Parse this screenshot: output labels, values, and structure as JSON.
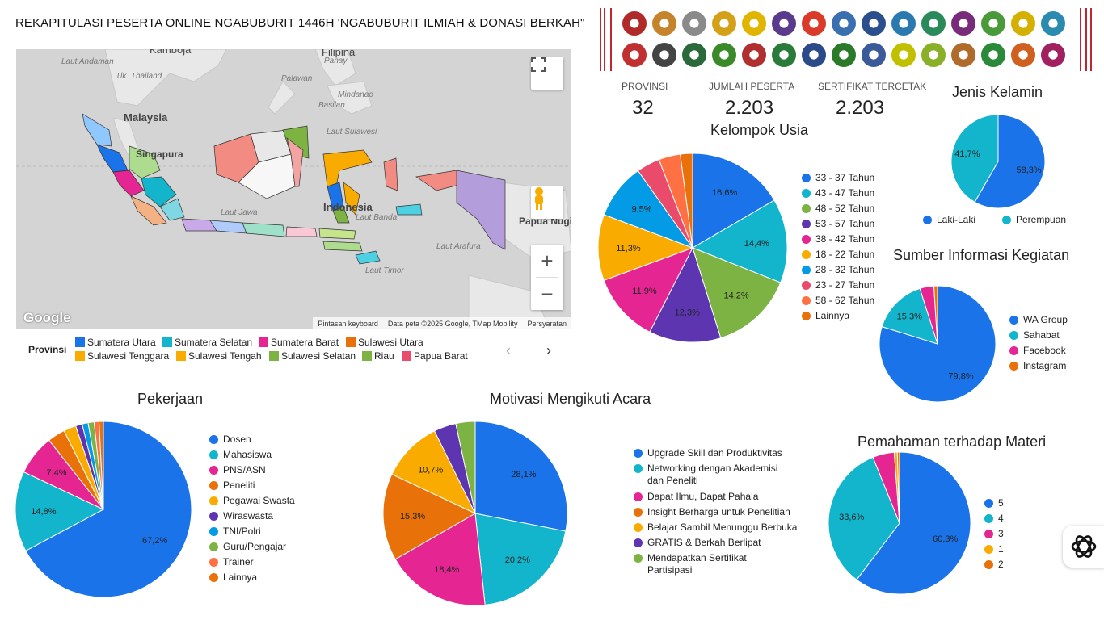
{
  "title": "REKAPITULASI PESERTA ONLINE NGABUBURIT 1446H 'NGABUBURIT ILMIAH & DONASI BERKAH\"",
  "map": {
    "labels": {
      "laut_andaman": "Laut Andaman",
      "kamboja": "Kamboja",
      "filipina": "Filipina",
      "panay": "Panay",
      "tlk_thailand": "Tlk. Thailand",
      "palawan": "Palawan",
      "mindanao": "Mindanao",
      "basilan": "Basilan",
      "malaysia": "Malaysia",
      "laut_sulawesi": "Laut Sulawesi",
      "singapura": "Singapura",
      "laut_jawa": "Laut Jawa",
      "indonesia": "Indonesia",
      "laut_banda": "Laut Banda",
      "papua_nugini": "Papua Nugini",
      "laut_arafura": "Laut Arafura",
      "laut_timor": "Laut Timor"
    },
    "footer": {
      "shortcuts": "Pintasan keyboard",
      "data": "Data peta ©2025 Google, TMap Mobility",
      "terms": "Persyaratan"
    },
    "logo": "Google",
    "zoom_in": "+",
    "zoom_out": "−",
    "fullscreen_icon": "fullscreen-icon",
    "pegman_icon": "pegman-icon"
  },
  "province_legend": {
    "label": "Provinsi",
    "items": [
      {
        "name": "Sumatera Utara",
        "color": "#1a73e8"
      },
      {
        "name": "Sumatera Selatan",
        "color": "#12b5cb"
      },
      {
        "name": "Sumatera Barat",
        "color": "#e52592"
      },
      {
        "name": "Sulawesi Utara",
        "color": "#e8710a"
      },
      {
        "name": "Sulawesi Tenggara",
        "color": "#f9ab00"
      },
      {
        "name": "Sulawesi Tengah",
        "color": "#f9ab00"
      },
      {
        "name": "Sulawesi Selatan",
        "color": "#7cb342"
      },
      {
        "name": "Riau",
        "color": "#7cb342"
      },
      {
        "name": "Papua Barat",
        "color": "#ea4b6b"
      }
    ],
    "prev": "‹",
    "next": "›"
  },
  "stats": {
    "provinsi_label": "PROVINSI",
    "provinsi_value": "32",
    "peserta_label": "JUMLAH PESERTA",
    "peserta_value": "2.203",
    "sertifikat_label": "SERTIFIKAT TERCETAK",
    "sertifikat_value": "2.203"
  },
  "chart_data": [
    {
      "id": "usia",
      "type": "pie",
      "title": "Kelompok Usia",
      "categories": [
        "33 - 37 Tahun",
        "43 - 47 Tahun",
        "48 - 52 Tahun",
        "53 - 57 Tahun",
        "38 - 42 Tahun",
        "18 - 22 Tahun",
        "28 - 32 Tahun",
        "23 - 27 Tahun",
        "58 - 62 Tahun",
        "Lainnya"
      ],
      "values": [
        16.6,
        14.4,
        14.2,
        12.3,
        11.9,
        11.3,
        9.5,
        4.0,
        3.7,
        2.1
      ],
      "labels": [
        "16,6%",
        "14,4%",
        "14,2%",
        "12,3%",
        "11,9%",
        "11,3%",
        "9,5%",
        "",
        "",
        ""
      ],
      "colors": [
        "#1a73e8",
        "#12b5cb",
        "#7cb342",
        "#5e35b1",
        "#e52592",
        "#f9ab00",
        "#039be5",
        "#ea4b6b",
        "#ff7043",
        "#e8710a"
      ]
    },
    {
      "id": "gender",
      "type": "pie",
      "title": "Jenis Kelamin",
      "categories": [
        "Laki-Laki",
        "Perempuan"
      ],
      "values": [
        58.3,
        41.7
      ],
      "labels": [
        "58,3%",
        "41,7%"
      ],
      "colors": [
        "#1a73e8",
        "#12b5cb"
      ]
    },
    {
      "id": "sumber",
      "type": "pie",
      "title": "Sumber Informasi Kegiatan",
      "categories": [
        "WA Group",
        "Sahabat",
        "Facebook",
        "Instagram"
      ],
      "values": [
        79.8,
        15.3,
        3.9,
        1.0
      ],
      "labels": [
        "79,8%",
        "15,3%",
        "",
        ""
      ],
      "colors": [
        "#1a73e8",
        "#12b5cb",
        "#e52592",
        "#e8710a"
      ]
    },
    {
      "id": "pekerjaan",
      "type": "pie",
      "title": "Pekerjaan",
      "categories": [
        "Dosen",
        "Mahasiswa",
        "PNS/ASN",
        "Peneliti",
        "Pegawai Swasta",
        "Wiraswasta",
        "TNI/Polri",
        "Guru/Pengajar",
        "Trainer",
        "Lainnya"
      ],
      "values": [
        67.2,
        14.8,
        7.4,
        3.2,
        2.3,
        1.2,
        1.1,
        1.1,
        0.9,
        0.8
      ],
      "labels": [
        "67,2%",
        "14,8%",
        "7,4%",
        "",
        "",
        "",
        "",
        "",
        "",
        ""
      ],
      "colors": [
        "#1a73e8",
        "#12b5cb",
        "#e52592",
        "#e8710a",
        "#f9ab00",
        "#5e35b1",
        "#039be5",
        "#7cb342",
        "#ff7043",
        "#e8710a"
      ]
    },
    {
      "id": "motivasi",
      "type": "pie",
      "title": "Motivasi Mengikuti Acara",
      "categories": [
        "Upgrade Skill dan Produktivitas",
        "Networking dengan Akademisi dan Peneliti",
        "Dapat Ilmu, Dapat Pahala",
        "Insight Berharga untuk Penelitian",
        "Belajar Sambil Menunggu Berbuka",
        "GRATIS & Berkah Berlipat",
        "Mendapatkan Sertifikat Partisipasi"
      ],
      "legend_lines": [
        [
          "Upgrade Skill dan Produktivitas"
        ],
        [
          "Networking dengan Akademisi",
          "dan Peneliti"
        ],
        [
          "Dapat Ilmu, Dapat Pahala"
        ],
        [
          "Insight Berharga untuk Penelitian"
        ],
        [
          "Belajar Sambil Menunggu Berbuka"
        ],
        [
          "GRATIS & Berkah Berlipat"
        ],
        [
          "Mendapatkan Sertifikat",
          "Partisipasi"
        ]
      ],
      "values": [
        28.1,
        20.2,
        18.4,
        15.3,
        10.7,
        3.9,
        3.4
      ],
      "labels": [
        "28,1%",
        "20,2%",
        "18,4%",
        "15,3%",
        "10,7%",
        "",
        ""
      ],
      "colors": [
        "#1a73e8",
        "#12b5cb",
        "#e52592",
        "#e8710a",
        "#f9ab00",
        "#5e35b1",
        "#7cb342"
      ]
    },
    {
      "id": "pemahaman",
      "type": "pie",
      "title": "Pemahaman terhadap Materi",
      "categories": [
        "5",
        "4",
        "3",
        "1",
        "2"
      ],
      "values": [
        60.3,
        33.6,
        4.9,
        0.7,
        0.5
      ],
      "labels": [
        "60,3%",
        "33,6%",
        "",
        "",
        ""
      ],
      "colors": [
        "#1a73e8",
        "#12b5cb",
        "#e52592",
        "#f9ab00",
        "#e8710a"
      ]
    }
  ],
  "corner_icon": "openai-logo-icon"
}
